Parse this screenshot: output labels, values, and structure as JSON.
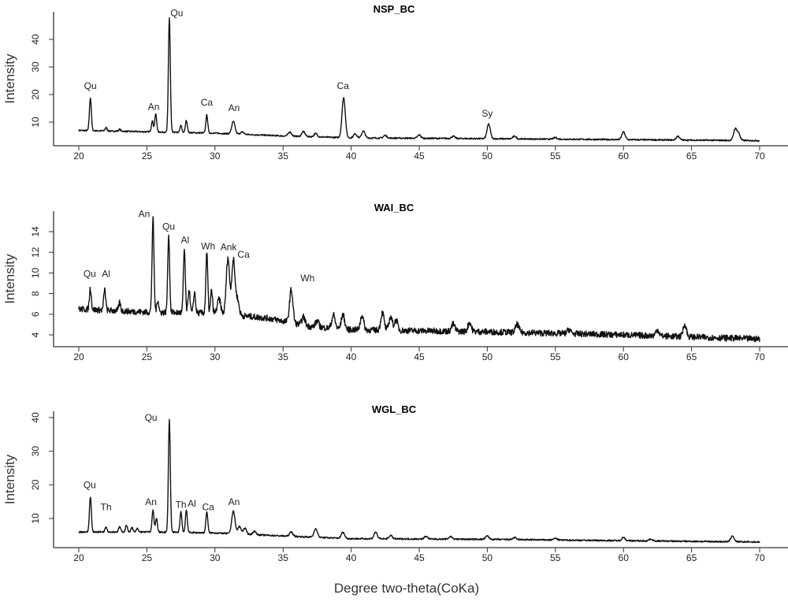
{
  "chart_data": {
    "type": "line",
    "xlabel": "Degree two-theta(CoKa)",
    "xlim": [
      20,
      70
    ],
    "xticks": [
      20,
      25,
      30,
      35,
      40,
      45,
      50,
      55,
      60,
      65,
      70
    ],
    "panels": [
      {
        "title": "NSP_BC",
        "ylabel": "Intensity",
        "yticks": [
          10,
          20,
          30,
          40
        ],
        "baseline": [
          [
            20,
            7
          ],
          [
            25,
            6.5
          ],
          [
            30,
            6
          ],
          [
            35,
            5
          ],
          [
            40,
            4.3
          ],
          [
            50,
            4
          ],
          [
            70,
            3.3
          ]
        ],
        "noise": 0.25,
        "peaks": [
          [
            20.85,
            12
          ],
          [
            22,
            1.2
          ],
          [
            23,
            0.7
          ],
          [
            25.4,
            4
          ],
          [
            25.65,
            6.5
          ],
          [
            26.65,
            41.5
          ],
          [
            27.5,
            2.5
          ],
          [
            27.9,
            4.5
          ],
          [
            29.4,
            6.5
          ],
          [
            31.35,
            4.5
          ],
          [
            32,
            0.8
          ],
          [
            35.5,
            1.5
          ],
          [
            36.5,
            1.8
          ],
          [
            37.4,
            1.2
          ],
          [
            39.45,
            14.5
          ],
          [
            40.3,
            1.5
          ],
          [
            40.9,
            2.5
          ],
          [
            42.5,
            1
          ],
          [
            45,
            1.2
          ],
          [
            47.5,
            0.8
          ],
          [
            50.1,
            5.3
          ],
          [
            52,
            1
          ],
          [
            55,
            0.6
          ],
          [
            60,
            2.8
          ],
          [
            64,
            1.4
          ],
          [
            68.2,
            4
          ],
          [
            68.45,
            2.5
          ]
        ],
        "labels": [
          [
            "Qu",
            20.85,
            22
          ],
          [
            "An",
            25.5,
            14.5
          ],
          [
            "Qu",
            27.2,
            48.5
          ],
          [
            "Ca",
            29.4,
            16
          ],
          [
            "An",
            31.4,
            14
          ],
          [
            "Ca",
            39.4,
            22
          ],
          [
            "Sy",
            50,
            12
          ]
        ]
      },
      {
        "title": "WAI_BC",
        "ylabel": "Intensity",
        "yticks": [
          4,
          6,
          8,
          10,
          12,
          14
        ],
        "baseline": [
          [
            20,
            6.5
          ],
          [
            25,
            6.2
          ],
          [
            30,
            6.1
          ],
          [
            34,
            5.6
          ],
          [
            37,
            4.8
          ],
          [
            40,
            4.5
          ],
          [
            50,
            4.3
          ],
          [
            60,
            4
          ],
          [
            70,
            3.6
          ]
        ],
        "noise": 0.3,
        "peaks": [
          [
            20.85,
            2.1
          ],
          [
            21.9,
            2
          ],
          [
            23,
            0.8
          ],
          [
            25.45,
            9
          ],
          [
            25.8,
            1.2
          ],
          [
            26.6,
            7.5
          ],
          [
            27.75,
            6.1
          ],
          [
            28.1,
            2.3
          ],
          [
            28.5,
            2
          ],
          [
            29.4,
            5.8
          ],
          [
            29.75,
            2.2
          ],
          [
            30.3,
            1.4
          ],
          [
            30.95,
            5.5
          ],
          [
            31.35,
            5.3
          ],
          [
            31.65,
            1.5
          ],
          [
            35.6,
            3.2
          ],
          [
            36.5,
            0.8
          ],
          [
            37.5,
            0.6
          ],
          [
            38.7,
            1.3
          ],
          [
            39.4,
            1.4
          ],
          [
            40.8,
            1.4
          ],
          [
            42.3,
            1.7
          ],
          [
            42.9,
            1.3
          ],
          [
            43.3,
            1
          ],
          [
            47.5,
            0.7
          ],
          [
            48.7,
            0.9
          ],
          [
            52.2,
            0.8
          ],
          [
            56,
            0.4
          ],
          [
            62.5,
            0.6
          ],
          [
            64.5,
            1.2
          ]
        ],
        "labels": [
          [
            "Qu",
            20.8,
            9.6
          ],
          [
            "Al",
            22.0,
            9.6
          ],
          [
            "An",
            24.8,
            15.4
          ],
          [
            "Qu",
            26.6,
            14.2
          ],
          [
            "Al",
            27.8,
            12.9
          ],
          [
            "Wh",
            29.5,
            12.3
          ],
          [
            "Ank",
            31.0,
            12.2
          ],
          [
            "Ca",
            32.1,
            11.5
          ],
          [
            "Wh",
            36.8,
            9.2
          ]
        ]
      },
      {
        "title": "WGL_BC",
        "ylabel": "Intensity",
        "yticks": [
          10,
          20,
          30,
          40
        ],
        "baseline": [
          [
            20,
            6
          ],
          [
            25,
            6
          ],
          [
            30,
            5.7
          ],
          [
            35,
            4.8
          ],
          [
            40,
            4
          ],
          [
            50,
            3.8
          ],
          [
            70,
            3
          ]
        ],
        "noise": 0.22,
        "peaks": [
          [
            20.85,
            10.5
          ],
          [
            22,
            1.6
          ],
          [
            23,
            1.6
          ],
          [
            23.5,
            2
          ],
          [
            23.9,
            1.3
          ],
          [
            24.3,
            1
          ],
          [
            25.45,
            6.5
          ],
          [
            25.7,
            4
          ],
          [
            26.65,
            33.5
          ],
          [
            27.5,
            6.2
          ],
          [
            27.9,
            6.7
          ],
          [
            29.4,
            6.3
          ],
          [
            31.35,
            6.8
          ],
          [
            31.8,
            2.2
          ],
          [
            32.2,
            1.7
          ],
          [
            32.9,
            1
          ],
          [
            35.6,
            1.3
          ],
          [
            37.4,
            2.6
          ],
          [
            39.4,
            1.8
          ],
          [
            41.8,
            2
          ],
          [
            42.9,
            1
          ],
          [
            45.5,
            0.8
          ],
          [
            47.3,
            0.8
          ],
          [
            50,
            1
          ],
          [
            52,
            0.6
          ],
          [
            55,
            0.5
          ],
          [
            60,
            1
          ],
          [
            62,
            0.6
          ],
          [
            68,
            1.8
          ]
        ],
        "labels": [
          [
            "Qu",
            20.8,
            19
          ],
          [
            "Th",
            22.0,
            12.5
          ],
          [
            "An",
            25.3,
            14
          ],
          [
            "Qu",
            25.3,
            39
          ],
          [
            "Th",
            27.5,
            13.2
          ],
          [
            "Al",
            28.3,
            13.5
          ],
          [
            "Ca",
            29.5,
            12.5
          ],
          [
            "An",
            31.4,
            14
          ]
        ]
      }
    ]
  }
}
